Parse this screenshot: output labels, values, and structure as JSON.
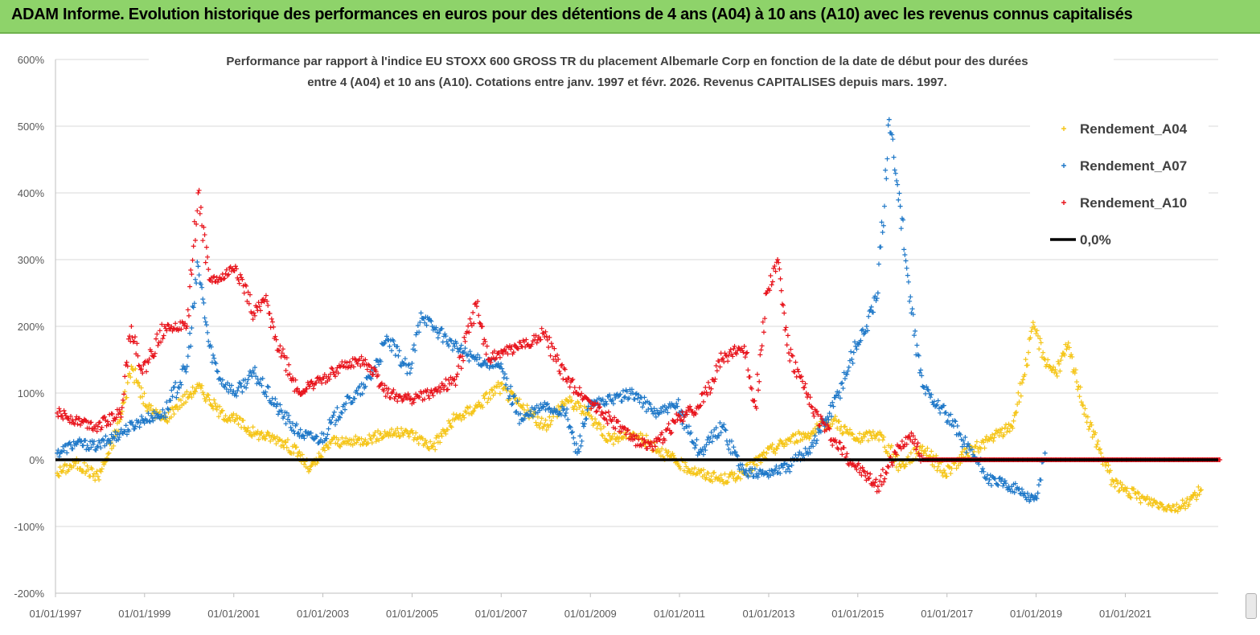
{
  "banner": {
    "title": "ADAM Informe. Evolution historique des performances en euros pour des détentions de 4 ans (A04) à 10 ans (A10) avec les revenus connus capitalisés",
    "background": "#8ed36a"
  },
  "chart_data": {
    "type": "scatter",
    "title_lines": [
      "Performance par rapport à l'indice EU STOXX 600 GROSS TR  du placement Albemarle Corp en fonction de la date de début pour des durées",
      "entre 4 (A04) et 10 ans (A10).  Cotations entre janv. 1997 et févr. 2026. Revenus  CAPITALISES depuis mars. 1997."
    ],
    "x_tick_labels": [
      "01/01/1997",
      "01/01/1999",
      "01/01/2001",
      "01/01/2003",
      "01/01/2005",
      "01/01/2007",
      "01/01/2009",
      "01/01/2011",
      "01/01/2013",
      "01/01/2015",
      "01/01/2017",
      "01/01/2019",
      "01/01/2021"
    ],
    "x_range": [
      "1997-01-01",
      "2023-02-01"
    ],
    "y_tick_labels": [
      "600%",
      "500%",
      "400%",
      "300%",
      "200%",
      "100%",
      "0%",
      "-100%",
      "-200%"
    ],
    "ylim": [
      -200,
      600
    ],
    "y_unit": "%",
    "grid": "horizontal",
    "legend_position": "top-right",
    "series": [
      {
        "name": "Rendement_A04",
        "color": "#f5c518",
        "marker": "+",
        "x": [
          "1997-01",
          "1997-06",
          "1997-12",
          "1998-03",
          "1998-06",
          "1998-09",
          "1999-01",
          "1999-06",
          "1999-09",
          "2000-01",
          "2000-03",
          "2000-06",
          "2000-09",
          "2001-01",
          "2001-06",
          "2002-01",
          "2002-06",
          "2002-09",
          "2002-12",
          "2003-03",
          "2003-06",
          "2003-12",
          "2004-06",
          "2004-12",
          "2005-06",
          "2005-12",
          "2006-06",
          "2006-12",
          "2007-06",
          "2007-12",
          "2008-06",
          "2008-12",
          "2009-06",
          "2009-12",
          "2010-06",
          "2010-12",
          "2011-06",
          "2011-12",
          "2012-06",
          "2012-12",
          "2013-06",
          "2013-12",
          "2014-06",
          "2014-12",
          "2015-06",
          "2015-12",
          "2016-06",
          "2016-12",
          "2017-06",
          "2017-12",
          "2018-06",
          "2018-09",
          "2018-12",
          "2019-03",
          "2019-06",
          "2019-09",
          "2019-12",
          "2020-03",
          "2020-06",
          "2020-09",
          "2020-12",
          "2021-06",
          "2021-12",
          "2022-03",
          "2022-06",
          "2022-09"
        ],
        "y": [
          -20,
          -5,
          -25,
          10,
          60,
          140,
          80,
          60,
          80,
          100,
          110,
          90,
          70,
          60,
          40,
          30,
          10,
          -15,
          5,
          30,
          25,
          30,
          40,
          40,
          20,
          60,
          80,
          110,
          80,
          50,
          90,
          70,
          30,
          40,
          20,
          -5,
          -20,
          -30,
          -20,
          10,
          30,
          40,
          60,
          30,
          40,
          -10,
          20,
          -20,
          10,
          30,
          50,
          120,
          200,
          150,
          130,
          170,
          110,
          50,
          10,
          -30,
          -45,
          -60,
          -70,
          -72,
          -60,
          -45
        ]
      },
      {
        "name": "Rendement_A07",
        "color": "#1f78c8",
        "marker": "+",
        "x": [
          "1997-01",
          "1997-06",
          "1997-12",
          "1998-06",
          "1998-12",
          "1999-06",
          "1999-12",
          "2000-03",
          "2000-06",
          "2000-09",
          "2001-01",
          "2001-06",
          "2001-12",
          "2002-06",
          "2002-12",
          "2003-06",
          "2003-12",
          "2004-06",
          "2004-12",
          "2005-03",
          "2005-06",
          "2005-12",
          "2006-06",
          "2006-12",
          "2007-06",
          "2007-12",
          "2008-06",
          "2008-09",
          "2008-12",
          "2009-06",
          "2009-12",
          "2010-06",
          "2010-12",
          "2011-06",
          "2011-12",
          "2012-06",
          "2012-12",
          "2013-06",
          "2013-12",
          "2014-06",
          "2014-12",
          "2015-03",
          "2015-06",
          "2015-09",
          "2015-12",
          "2016-03",
          "2016-06",
          "2016-12",
          "2017-06",
          "2017-12",
          "2018-06",
          "2018-09",
          "2018-12",
          "2019-01",
          "2019-03"
        ],
        "y": [
          10,
          25,
          20,
          40,
          60,
          70,
          140,
          290,
          170,
          120,
          100,
          130,
          80,
          40,
          30,
          80,
          110,
          180,
          130,
          220,
          200,
          170,
          150,
          140,
          60,
          80,
          70,
          10,
          80,
          90,
          100,
          70,
          80,
          10,
          50,
          -20,
          -20,
          -10,
          20,
          80,
          170,
          200,
          250,
          510,
          380,
          220,
          110,
          70,
          20,
          -30,
          -40,
          -50,
          -60,
          -50,
          10
        ]
      },
      {
        "name": "Rendement_A10",
        "color": "#e8141c",
        "marker": "+",
        "x": [
          "1997-01",
          "1997-06",
          "1997-12",
          "1998-06",
          "1998-09",
          "1998-12",
          "1999-06",
          "1999-12",
          "2000-03",
          "2000-06",
          "2000-09",
          "2001-01",
          "2001-06",
          "2001-09",
          "2001-12",
          "2002-06",
          "2002-09",
          "2002-12",
          "2003-06",
          "2003-12",
          "2004-06",
          "2004-12",
          "2005-06",
          "2005-12",
          "2006-06",
          "2006-09",
          "2006-12",
          "2007-06",
          "2007-12",
          "2008-06",
          "2008-12",
          "2009-06",
          "2009-12",
          "2010-06",
          "2010-12",
          "2011-06",
          "2011-12",
          "2012-06",
          "2012-09",
          "2012-12",
          "2013-03",
          "2013-06",
          "2013-12",
          "2014-06",
          "2014-12",
          "2015-06",
          "2015-12",
          "2016-03",
          "2016-06",
          "2017-01",
          "2018-01",
          "2019-01",
          "2020-01",
          "2021-01",
          "2022-01",
          "2023-02"
        ],
        "y": [
          70,
          60,
          50,
          70,
          200,
          130,
          200,
          200,
          400,
          270,
          270,
          290,
          220,
          240,
          180,
          100,
          110,
          120,
          140,
          150,
          100,
          90,
          100,
          120,
          230,
          150,
          160,
          170,
          190,
          120,
          90,
          60,
          30,
          20,
          60,
          80,
          150,
          170,
          80,
          250,
          300,
          160,
          80,
          30,
          -10,
          -40,
          20,
          40,
          0,
          0,
          0,
          0,
          0,
          0,
          0,
          0
        ]
      },
      {
        "name": "0,0%",
        "color": "#000000",
        "marker": "line",
        "x": [
          "1997-01-01",
          "2023-02-01"
        ],
        "y": [
          0,
          0
        ]
      }
    ]
  }
}
